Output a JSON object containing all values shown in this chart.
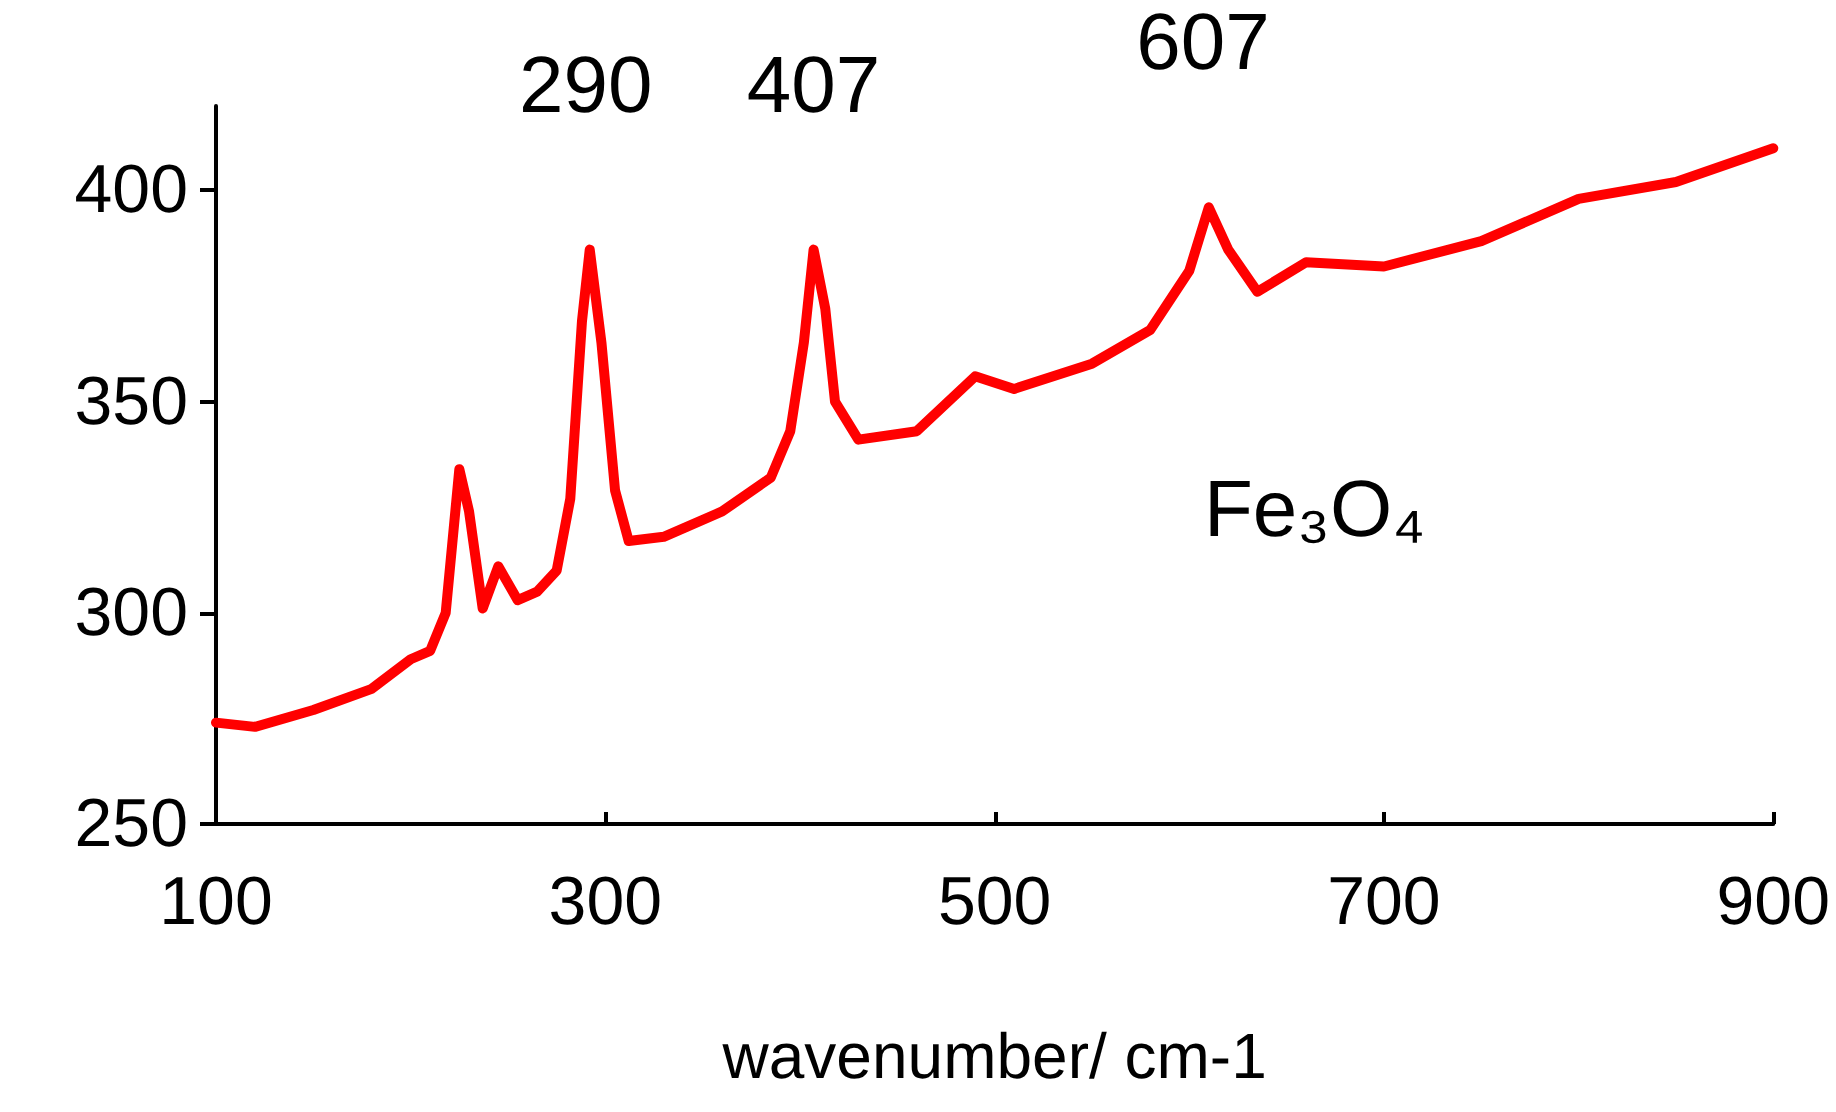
{
  "chart_data": {
    "type": "line",
    "xlabel": "wavenumber/ cm-1",
    "x": [
      100,
      120,
      150,
      180,
      200,
      210,
      218,
      225,
      230,
      237,
      245,
      255,
      265,
      275,
      282,
      288,
      292,
      298,
      305,
      312,
      330,
      360,
      385,
      395,
      402,
      407,
      413,
      418,
      430,
      460,
      490,
      510,
      550,
      580,
      600,
      610,
      620,
      635,
      660,
      700,
      750,
      800,
      850,
      900
    ],
    "series": [
      {
        "color": "#ff0000",
        "values": [
          274,
          273,
          277,
          282,
          289,
          291,
          300,
          334,
          324,
          301,
          311,
          303,
          305,
          310,
          327,
          369,
          386,
          364,
          329,
          317,
          318,
          324,
          332,
          343,
          364,
          386,
          372,
          350,
          341,
          343,
          356,
          353,
          359,
          367,
          381,
          396,
          386,
          376,
          383,
          382,
          388,
          398,
          402,
          410
        ]
      }
    ],
    "xlim": [
      100,
      900
    ],
    "xticks": [
      100,
      300,
      500,
      700,
      900
    ],
    "ylim": [
      250,
      420
    ],
    "yticks": [
      250,
      300,
      350,
      400
    ],
    "marker": "none",
    "line_style": "solid",
    "annotations": [
      {
        "text": "290",
        "x": 290,
        "y": 386
      },
      {
        "text": "407",
        "x": 407,
        "y": 386
      },
      {
        "text": "607",
        "x": 607,
        "y": 396
      },
      "Fe₃O₄"
    ]
  }
}
